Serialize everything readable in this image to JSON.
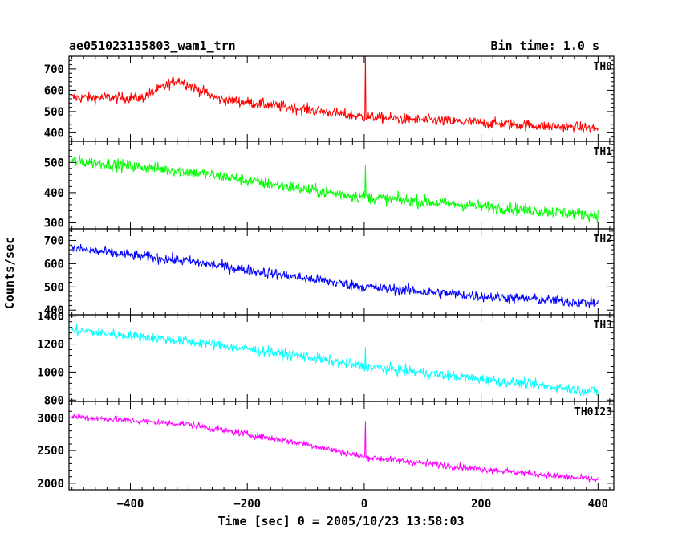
{
  "header": {
    "title": "ae051023135803_wam1_trn",
    "bin_time": "Bin time: 1.0 s"
  },
  "chart_data": {
    "type": "line",
    "xlabel": "Time [sec] 0 = 2005/10/23 13:58:03",
    "ylabel": "Counts/sec",
    "xlim": [
      -505,
      427
    ],
    "xticks": [
      -400,
      -200,
      0,
      200,
      400
    ],
    "xtick_labels": [
      "−400",
      "−200",
      "0",
      "200",
      "400"
    ],
    "panels": [
      {
        "label": "TH0",
        "color": "#ff0000",
        "ylim": [
          360,
          760
        ],
        "yticks": [
          400,
          500,
          600,
          700
        ],
        "trend": [
          [
            -500,
            565
          ],
          [
            -380,
            565
          ],
          [
            -320,
            650
          ],
          [
            -250,
            560
          ],
          [
            -100,
            510
          ],
          [
            0,
            475
          ],
          [
            100,
            460
          ],
          [
            250,
            440
          ],
          [
            400,
            420
          ]
        ],
        "noise": 45,
        "spike": {
          "x": 2,
          "y": 760
        }
      },
      {
        "label": "TH1",
        "color": "#00ff00",
        "ylim": [
          280,
          570
        ],
        "yticks": [
          300,
          400,
          500
        ],
        "trend": [
          [
            -500,
            505
          ],
          [
            -300,
            470
          ],
          [
            -100,
            410
          ],
          [
            0,
            385
          ],
          [
            200,
            355
          ],
          [
            400,
            325
          ]
        ],
        "noise": 35,
        "spike": {
          "x": 2,
          "y": 490
        }
      },
      {
        "label": "TH2",
        "color": "#0000ff",
        "ylim": [
          380,
          750
        ],
        "yticks": [
          400,
          500,
          600,
          700
        ],
        "trend": [
          [
            -500,
            665
          ],
          [
            -300,
            610
          ],
          [
            -150,
            555
          ],
          [
            0,
            500
          ],
          [
            200,
            460
          ],
          [
            400,
            430
          ]
        ],
        "noise": 40,
        "spike": null
      },
      {
        "label": "TH3",
        "color": "#00ffff",
        "ylim": [
          790,
          1410
        ],
        "yticks": [
          800,
          1000,
          1200,
          1400
        ],
        "trend": [
          [
            -500,
            1300
          ],
          [
            -300,
            1220
          ],
          [
            -100,
            1110
          ],
          [
            0,
            1040
          ],
          [
            200,
            950
          ],
          [
            400,
            860
          ]
        ],
        "noise": 65,
        "spike": {
          "x": 2,
          "y": 1180
        }
      },
      {
        "label": "TH0123",
        "color": "#ff00ff",
        "ylim": [
          1900,
          3250
        ],
        "yticks": [
          2000,
          2500,
          3000
        ],
        "trend": [
          [
            -500,
            3020
          ],
          [
            -300,
            2900
          ],
          [
            -100,
            2600
          ],
          [
            0,
            2400
          ],
          [
            200,
            2220
          ],
          [
            400,
            2050
          ]
        ],
        "noise": 90,
        "spike": {
          "x": 2,
          "y": 2950
        }
      }
    ]
  }
}
